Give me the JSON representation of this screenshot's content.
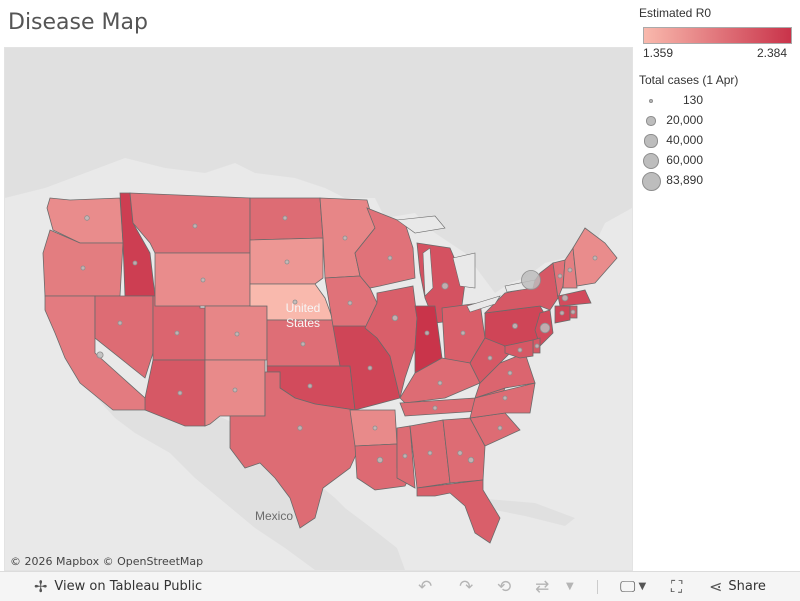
{
  "title": "Disease Map",
  "colors": {
    "ramp_min": "#f9b9ad",
    "ramp_max": "#c9334a",
    "land_out": "#e0e0e0",
    "water": "#e9e9e9",
    "dot_fill": "#bdbdbd",
    "dot_stroke": "#8e8e8e"
  },
  "legend": {
    "color_title": "Estimated R0",
    "color_min": "1.359",
    "color_max": "2.384",
    "size_title": "Total cases (1 Apr)",
    "size_items": [
      {
        "label": "130",
        "value": 130
      },
      {
        "label": "20,000",
        "value": 20000
      },
      {
        "label": "40,000",
        "value": 40000
      },
      {
        "label": "60,000",
        "value": 60000
      },
      {
        "label": "83,890",
        "value": 83890
      }
    ]
  },
  "map": {
    "country_label": "United States",
    "mexico_label": "Mexico",
    "attribution": "© 2026 Mapbox  © OpenStreetMap"
  },
  "states_r0": {
    "WA": 1.7,
    "OR": 1.82,
    "CA": 1.83,
    "ID": 2.3,
    "NV": 1.95,
    "UT": 2.0,
    "AZ": 2.1,
    "MT": 1.9,
    "WY": 1.7,
    "CO": 1.75,
    "NM": 1.72,
    "ND": 1.95,
    "SD": 1.62,
    "NE": 1.36,
    "KS": 1.93,
    "OK": 2.2,
    "TX": 1.95,
    "MN": 1.75,
    "IA": 1.9,
    "MO": 2.25,
    "AR": 1.72,
    "LA": 1.96,
    "WI": 1.9,
    "IL": 2.05,
    "MI": 2.15,
    "IN": 2.38,
    "OH": 2.05,
    "KY": 1.95,
    "TN": 1.95,
    "MS": 1.95,
    "AL": 1.95,
    "GA": 1.95,
    "FL": 2.05,
    "SC": 1.95,
    "NC": 1.95,
    "VA": 2.0,
    "WV": 2.1,
    "PA": 2.25,
    "NY": 2.1,
    "VT": 1.9,
    "NH": 1.8,
    "ME": 1.7,
    "MA": 2.2,
    "CT": 2.25,
    "RI": 2.1,
    "NJ": 2.2,
    "DE": 2.1,
    "MD": 2.1
  },
  "cases": {
    "WA": 5000,
    "CA": 9000,
    "CO": 3000,
    "AZ": 1500,
    "TX": 4500,
    "LA": 7000,
    "MS": 1000,
    "GA": 4600,
    "FL": 7000,
    "MI": 9300,
    "IL": 6900,
    "IN": 2500,
    "OH": 2500,
    "PA": 6000,
    "NY": 83890,
    "NJ": 22000,
    "MA": 7700,
    "CT": 3500,
    "MO": 1300,
    "TN": 2800,
    "MD": 2000,
    "NV": 1300,
    "UT": 900,
    "KS": 400,
    "WI": 1500,
    "NC": 1600,
    "VA": 1500,
    "KY": 700,
    "OK": 700,
    "AR": 600,
    "AL": 1100,
    "SC": 1100,
    "NE": 250,
    "ND": 140,
    "SD": 130,
    "IA": 550,
    "MN": 700,
    "MT": 220,
    "WY": 150,
    "ID": 700,
    "NM": 350,
    "OR": 700,
    "WV": 200,
    "DE": 400,
    "RI": 600,
    "NH": 400,
    "VT": 300,
    "ME": 350
  },
  "toolbar": {
    "view_label": "View on Tableau Public",
    "share_label": "Share"
  }
}
